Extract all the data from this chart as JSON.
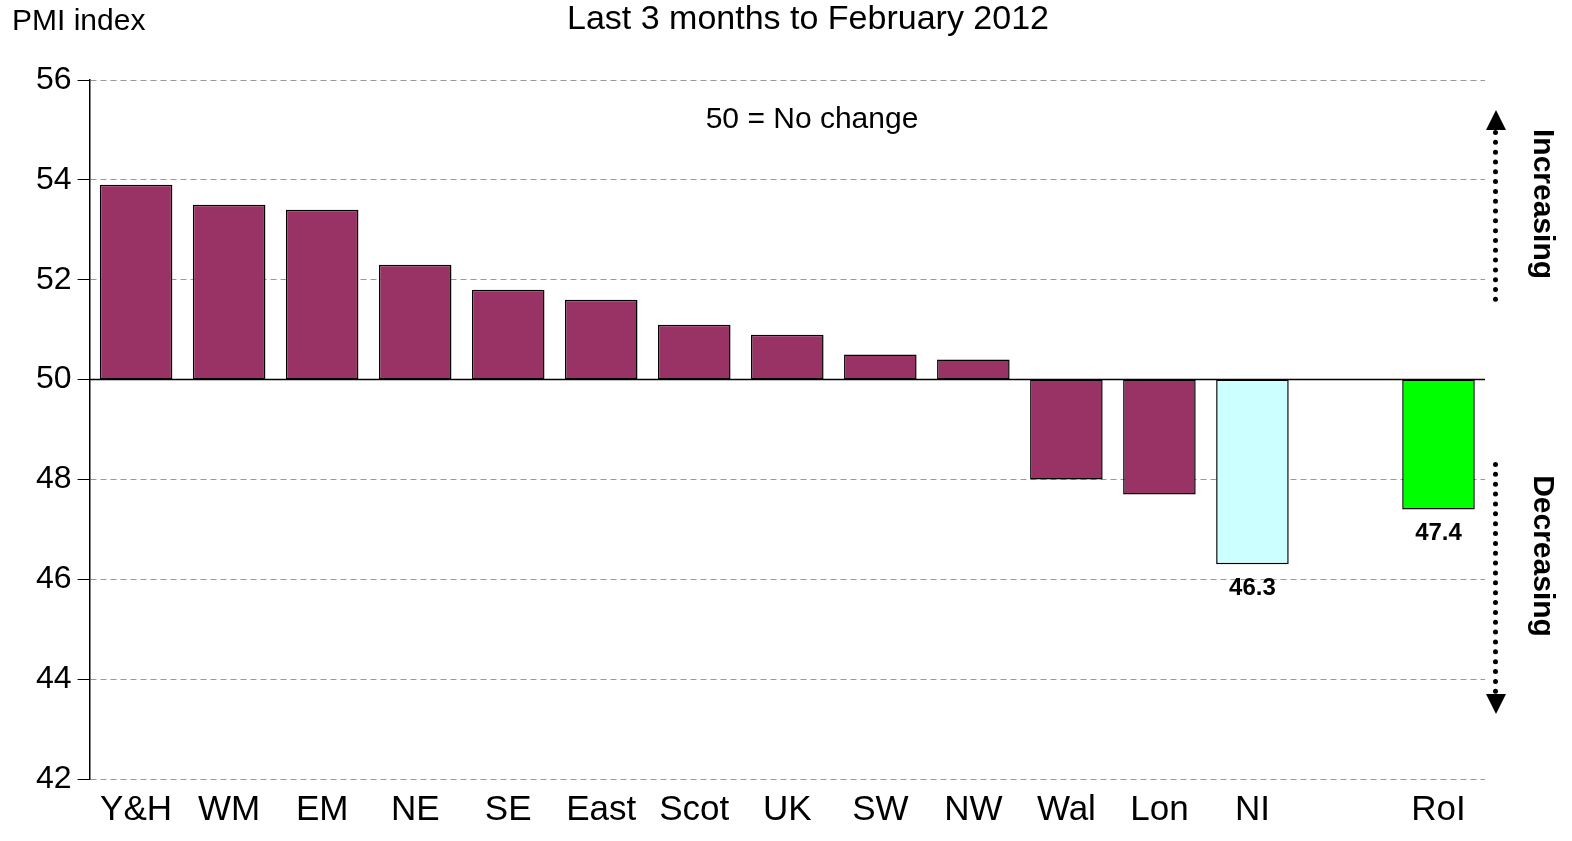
{
  "chart_data": {
    "type": "bar",
    "title": "Last 3 months to February 2012",
    "ylabel": "PMI index",
    "categories": [
      "Y&H",
      "WM",
      "EM",
      "NE",
      "SE",
      "East",
      "Scot",
      "UK",
      "SW",
      "NW",
      "Wal",
      "Lon",
      "NI",
      null,
      "RoI"
    ],
    "base": [
      50,
      50,
      50,
      50,
      50,
      50,
      50,
      50,
      50,
      50,
      50,
      50,
      50,
      null,
      50
    ],
    "ref_lines": [
      {
        "axis": "y",
        "value": 50,
        "color": "#000000"
      }
    ],
    "values": [
      3.9,
      3.5,
      3.4,
      2.3,
      1.8,
      1.6,
      1.1,
      0.9,
      0.5,
      0.4,
      -2.0,
      -2.3,
      -3.7,
      null,
      -2.6
    ],
    "colors": [
      "#993366",
      "#993366",
      "#993366",
      "#993366",
      "#993366",
      "#993366",
      "#993366",
      "#993366",
      "#993366",
      "#993366",
      "#993366",
      "#993366",
      "#ccffff",
      "#993366",
      "#00ff00"
    ],
    "value_labels": [
      null,
      null,
      null,
      null,
      null,
      null,
      null,
      null,
      null,
      null,
      null,
      null,
      "46.3",
      null,
      "47.4"
    ],
    "ylim": [
      42,
      56
    ],
    "yticks": [
      42,
      44,
      46,
      48,
      50,
      52,
      54,
      56
    ],
    "grid": "y",
    "legend": false,
    "annotations": [
      "50 = No change",
      "Increasing",
      "Decreasing"
    ]
  }
}
